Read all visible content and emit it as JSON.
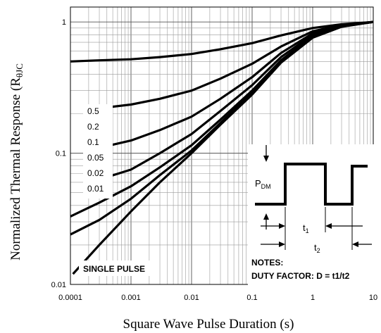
{
  "chart_data": {
    "type": "line",
    "title": "",
    "xlabel": "Square Wave Pulse Duration (s)",
    "ylabel": "Normalized Thermal Response (R",
    "ylabel_sub": "θJC",
    "x_scale": "log",
    "y_scale": "log",
    "xlim": [
      0.0001,
      10
    ],
    "ylim": [
      0.01,
      1.3
    ],
    "grid": true,
    "x_ticks": [
      {
        "value": 0.0001,
        "label": "0.0001"
      },
      {
        "value": 0.001,
        "label": "0.001"
      },
      {
        "value": 0.01,
        "label": "0.01"
      },
      {
        "value": 0.1,
        "label": "0.1"
      },
      {
        "value": 1,
        "label": "1"
      },
      {
        "value": 10,
        "label": "10"
      }
    ],
    "y_ticks": [
      {
        "value": 0.01,
        "label": "0.01"
      },
      {
        "value": 0.1,
        "label": "0.1"
      },
      {
        "value": 1,
        "label": "1"
      }
    ],
    "legend_labels": [
      "0.5",
      "0.2",
      "0.1",
      "0.05",
      "0.02",
      "0.01"
    ],
    "single_pulse_label": "SINGLE PULSE",
    "series": [
      {
        "name": "0.5",
        "x": [
          0.0001,
          0.0003,
          0.001,
          0.003,
          0.01,
          0.03,
          0.1,
          0.3,
          1,
          3,
          10
        ],
        "y": [
          0.5,
          0.51,
          0.52,
          0.54,
          0.57,
          0.62,
          0.69,
          0.79,
          0.9,
          0.96,
          1.0
        ]
      },
      {
        "name": "0.2",
        "x": [
          0.0003,
          0.001,
          0.003,
          0.01,
          0.03,
          0.1,
          0.3,
          1,
          3,
          10
        ],
        "y": [
          0.22,
          0.235,
          0.26,
          0.3,
          0.37,
          0.48,
          0.65,
          0.85,
          0.95,
          1.0
        ]
      },
      {
        "name": "0.1",
        "x": [
          0.0003,
          0.001,
          0.003,
          0.01,
          0.03,
          0.1,
          0.3,
          1,
          3,
          10
        ],
        "y": [
          0.11,
          0.125,
          0.15,
          0.19,
          0.26,
          0.38,
          0.58,
          0.82,
          0.94,
          1.0
        ]
      },
      {
        "name": "0.05",
        "x": [
          0.0003,
          0.001,
          0.003,
          0.01,
          0.03,
          0.1,
          0.3,
          1,
          3,
          10
        ],
        "y": [
          0.063,
          0.075,
          0.1,
          0.14,
          0.21,
          0.33,
          0.54,
          0.8,
          0.94,
          1.0
        ]
      },
      {
        "name": "0.02",
        "x": [
          0.0001,
          0.0003,
          0.001,
          0.003,
          0.01,
          0.03,
          0.1,
          0.3,
          1,
          3,
          10
        ],
        "y": [
          0.033,
          0.042,
          0.056,
          0.078,
          0.115,
          0.18,
          0.3,
          0.51,
          0.78,
          0.93,
          1.0
        ]
      },
      {
        "name": "0.01",
        "x": [
          0.0001,
          0.0003,
          0.001,
          0.003,
          0.01,
          0.03,
          0.1,
          0.3,
          1,
          3,
          10
        ],
        "y": [
          0.024,
          0.031,
          0.045,
          0.068,
          0.105,
          0.17,
          0.29,
          0.5,
          0.77,
          0.93,
          1.0
        ]
      },
      {
        "name": "SINGLE PULSE",
        "x": [
          0.00011,
          0.0003,
          0.001,
          0.003,
          0.01,
          0.03,
          0.1,
          0.3,
          1,
          3,
          10
        ],
        "y": [
          0.012,
          0.02,
          0.036,
          0.06,
          0.1,
          0.165,
          0.28,
          0.49,
          0.76,
          0.92,
          1.0
        ]
      }
    ],
    "inset": {
      "p_label": "P",
      "p_sub": "DM",
      "t1_label": "t",
      "t1_sub": "1",
      "t2_label": "t",
      "t2_sub": "2",
      "notes_title": "NOTES:",
      "notes_text": "DUTY FACTOR: D = t1/t2"
    }
  }
}
